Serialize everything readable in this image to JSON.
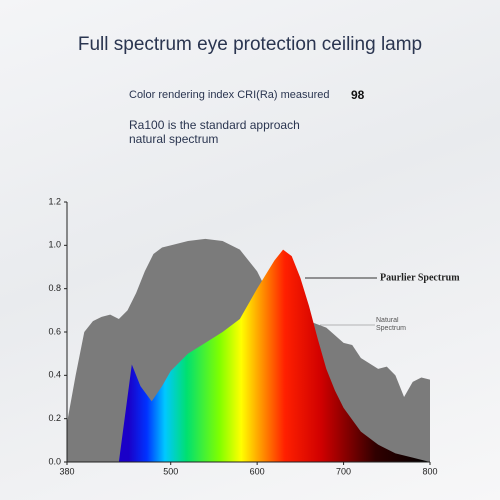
{
  "chart_data": {
    "type": "area",
    "title": "Full spectrum eye protection ceiling lamp",
    "cri_text": "Color rendering index CRI(Ra) measured",
    "cri_value": 98,
    "subtitle": "Ra100 is the standard approach natural spectrum",
    "xlim": [
      380,
      800
    ],
    "xticks": [
      380,
      500,
      600,
      700,
      800
    ],
    "ylim": [
      0,
      1.2
    ],
    "yticks": [
      {
        "value": 0,
        "label": "0.0"
      },
      0.2,
      0.4,
      0.6,
      0.8,
      {
        "value": 1,
        "label": "1.0"
      },
      1.2
    ],
    "series": [
      {
        "name": "Natural Spectrum",
        "color": "#7b7b7b",
        "x": [
          380,
          390,
          400,
          410,
          420,
          430,
          440,
          450,
          460,
          470,
          480,
          490,
          500,
          520,
          540,
          560,
          580,
          590,
          600,
          610,
          620,
          640,
          660,
          680,
          700,
          710,
          720,
          740,
          750,
          760,
          770,
          780,
          790,
          800
        ],
        "values": [
          0.18,
          0.4,
          0.6,
          0.65,
          0.67,
          0.68,
          0.66,
          0.7,
          0.78,
          0.88,
          0.96,
          0.99,
          1.0,
          1.02,
          1.03,
          1.02,
          0.98,
          0.93,
          0.88,
          0.8,
          0.72,
          0.68,
          0.65,
          0.62,
          0.55,
          0.54,
          0.48,
          0.43,
          0.44,
          0.4,
          0.3,
          0.37,
          0.39,
          0.38
        ]
      },
      {
        "name": "Paurlier Spectrum",
        "x": [
          440,
          450,
          455,
          465,
          478,
          490,
          500,
          520,
          540,
          560,
          580,
          600,
          620,
          630,
          640,
          650,
          660,
          670,
          680,
          690,
          700,
          720,
          740,
          760,
          780,
          800
        ],
        "values": [
          0,
          0.3,
          0.45,
          0.35,
          0.28,
          0.35,
          0.42,
          0.5,
          0.55,
          0.6,
          0.66,
          0.8,
          0.93,
          0.98,
          0.95,
          0.85,
          0.72,
          0.57,
          0.43,
          0.33,
          0.25,
          0.14,
          0.08,
          0.04,
          0.02,
          0
        ]
      }
    ]
  }
}
